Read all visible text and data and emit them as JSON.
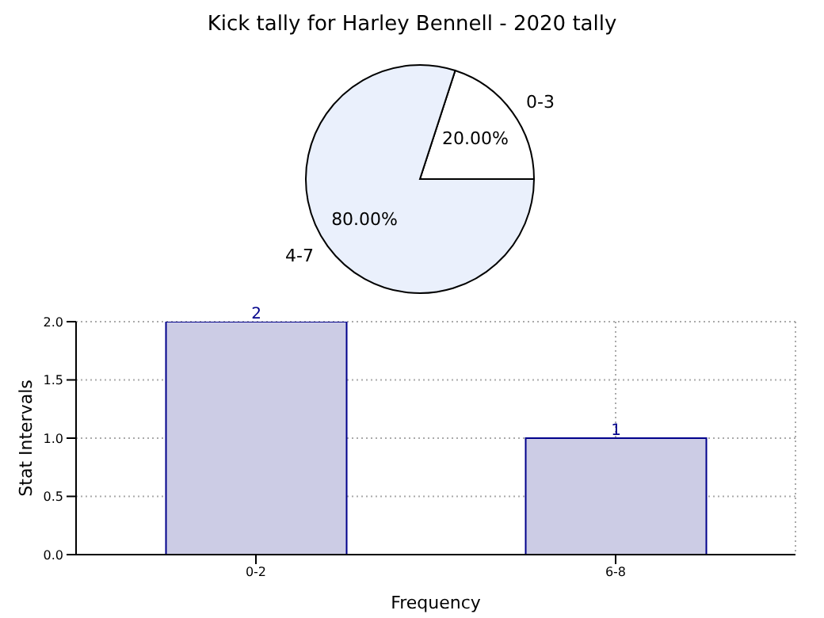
{
  "chart_data": [
    {
      "type": "pie",
      "title": "Kick tally for Harley Bennell - 2020 tally",
      "categories": [
        "0-3",
        "4-7"
      ],
      "values": [
        20,
        80
      ],
      "colors": [
        "#ffffff",
        "#eaf0fc"
      ],
      "value_labels": [
        "20.00%",
        "80.00%"
      ],
      "legend": false
    },
    {
      "type": "bar",
      "categories": [
        "0-2",
        "6-8"
      ],
      "values": [
        2,
        1
      ],
      "color": "#cccce5",
      "xlabel": "Frequency",
      "ylabel": "Stat Intervals",
      "ylim": [
        0,
        2
      ],
      "yticks": [
        {
          "value": 0,
          "label": "0.0"
        },
        {
          "value": 0.5,
          "label": "0.5"
        },
        {
          "value": 1,
          "label": "1.0"
        },
        {
          "value": 1.5,
          "label": "1.5"
        },
        {
          "value": 2,
          "label": "2.0"
        }
      ],
      "grid": true,
      "data_labels": true,
      "legend": false
    }
  ]
}
